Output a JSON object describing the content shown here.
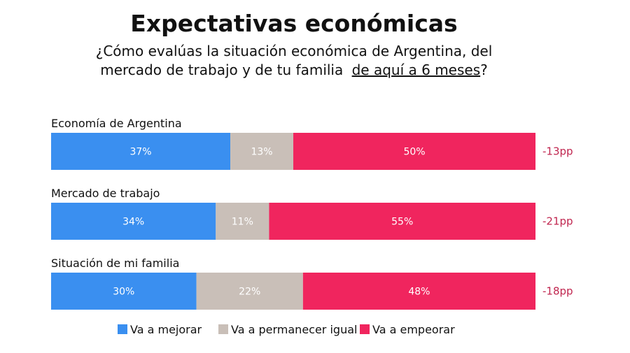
{
  "chart_data": {
    "type": "stacked-bar-horizontal",
    "title": "Expectativas económicas",
    "subtitle": [
      "¿Cómo evalúas la situación económica de Argentina, del",
      "mercado de trabajo y de tu familia",
      "de aquí a 6 meses",
      "?"
    ],
    "categories": [
      "Economía de Argentina",
      "Mercado de trabajo",
      "Situación de mi familia"
    ],
    "xlim": [
      0,
      100
    ],
    "series": [
      {
        "name": "Va a mejorar",
        "color": "#3a8ff0",
        "values": [
          37,
          34,
          30
        ],
        "value_labels": [
          "37%",
          "34%",
          "30%"
        ]
      },
      {
        "name": "Va a permanecer igual",
        "color": "#c9bfb8",
        "values": [
          13,
          11,
          22
        ],
        "value_labels": [
          "13%",
          "11%",
          "22%"
        ]
      },
      {
        "name": "Va a empeorar",
        "color": "#f0255e",
        "values": [
          50,
          55,
          48
        ],
        "value_labels": [
          "50%",
          "55%",
          "48%"
        ]
      }
    ],
    "annotations": [
      "-13pp",
      "-21pp",
      "-18pp"
    ]
  }
}
